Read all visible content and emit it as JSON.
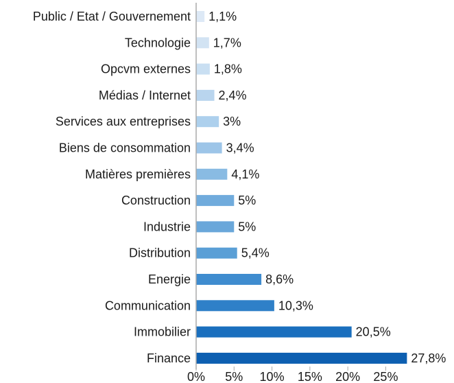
{
  "chart_data": {
    "type": "bar",
    "orientation": "horizontal",
    "title": "",
    "xlabel": "",
    "ylabel": "",
    "categories": [
      "Public / Etat / Gouvernement",
      "Technologie",
      "Opcvm externes",
      "Médias / Internet",
      "Services aux entreprises",
      "Biens de consommation",
      "Matières premières",
      "Construction",
      "Industrie",
      "Distribution",
      "Energie",
      "Communication",
      "Immobilier",
      "Finance"
    ],
    "values": [
      1.1,
      1.7,
      1.8,
      2.4,
      3,
      3.4,
      4.1,
      5,
      5,
      5.4,
      8.6,
      10.3,
      20.5,
      27.8
    ],
    "value_labels": [
      "1,1%",
      "1,7%",
      "1,8%",
      "2,4%",
      "3%",
      "3,4%",
      "4,1%",
      "5%",
      "5%",
      "5,4%",
      "8,6%",
      "10,3%",
      "20,5%",
      "27,8%"
    ],
    "bar_colors": [
      "#dde9f6",
      "#d2e3f3",
      "#c9dff2",
      "#b9d5ee",
      "#add0ed",
      "#9dc5e8",
      "#89bbe3",
      "#70abdc",
      "#6aa7da",
      "#5a9fd6",
      "#3f8ccf",
      "#2f80c8",
      "#1a6fbe",
      "#0d5fb1"
    ],
    "xlim": [
      0,
      27.8
    ],
    "x_ticks": [
      0,
      5,
      10,
      15,
      20,
      25
    ],
    "x_tick_labels": [
      "0%",
      "5%",
      "10%",
      "15%",
      "20%",
      "25%"
    ],
    "grid": false,
    "legend": "none",
    "axis_color": "#aaaaaa"
  }
}
